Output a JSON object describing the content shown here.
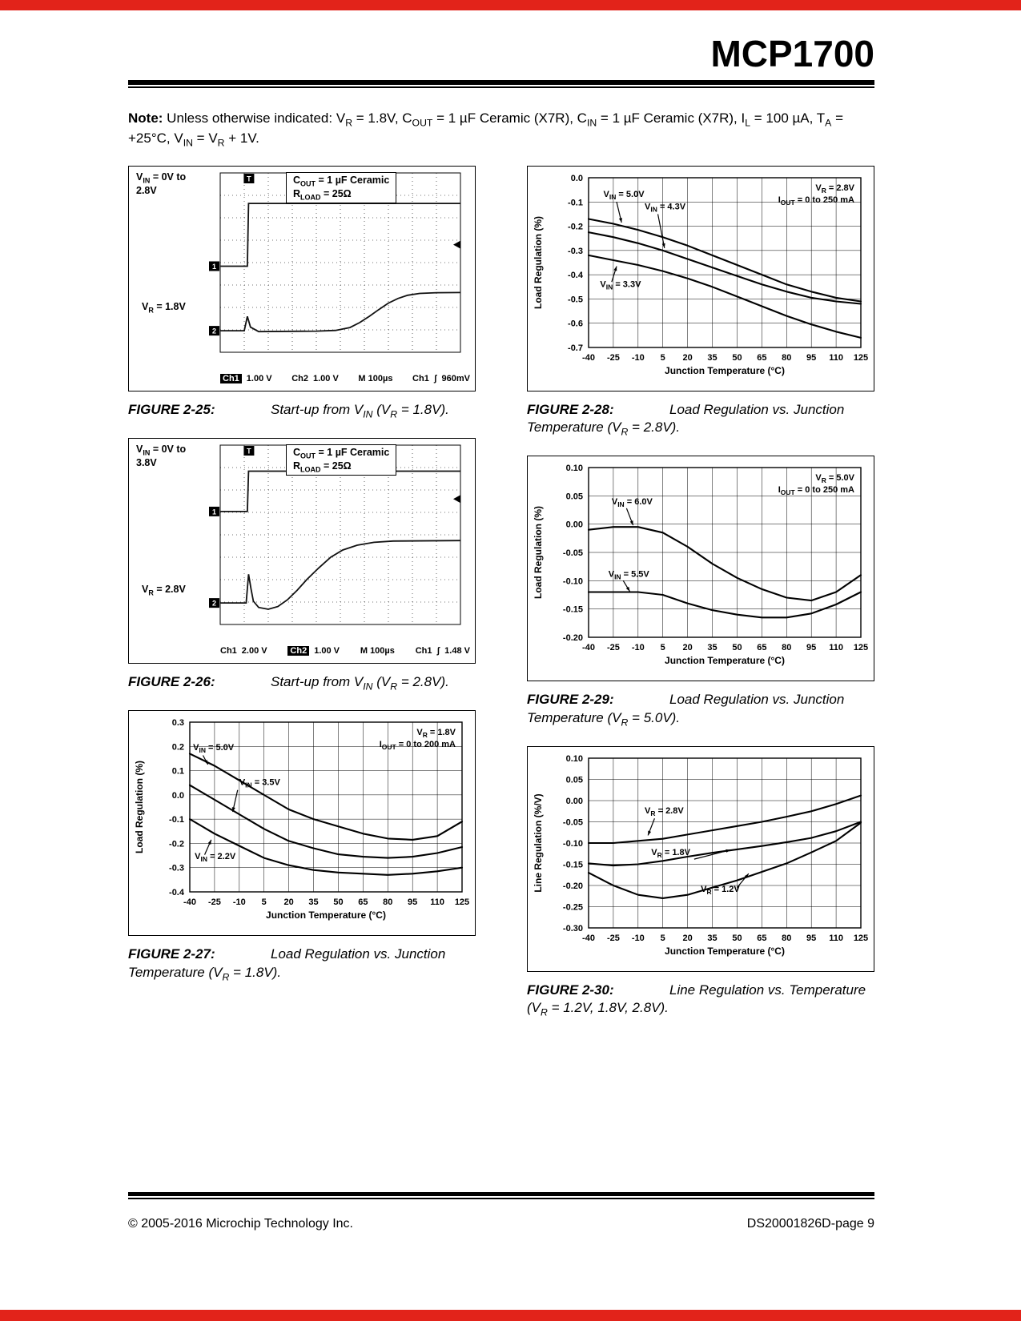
{
  "page": {
    "title": "MCP1700",
    "note_label": "Note:",
    "note_body": " Unless otherwise indicated: V_R_ = 1.8V, C_OUT_ = 1 µF Ceramic (X7R), C_IN_ = 1 µF Ceramic (X7R), I_L_ = 100 µA, T_A_ = +25°C, V_IN_ = V_R_ + 1V.",
    "footer_left": "© 2005-2016 Microchip Technology Inc.",
    "footer_right": "DS20001826D-page 9",
    "accent_color": "#e2231a"
  },
  "chart_data": [
    {
      "type": "scope",
      "caption_label": "FIGURE 2-25:",
      "caption_text": "Start-up from V_IN_ (V_R_ = 1.8V).",
      "vin_label_1": "V_IN_ = 0V to",
      "vin_label_2": "2.8V",
      "inset_label_1": "C_OUT_ = 1 µF Ceramic",
      "inset_label_2": "R_LOAD_ = 25Ω",
      "vr_label": "V_R_ = 1.8V",
      "vr_top": 0.6,
      "readout": [
        [
          {
            "t": "Ch1",
            "inv": true
          },
          {
            "t": "1.00 V"
          }
        ],
        [
          {
            "t": "Ch2"
          },
          {
            "t": "1.00 V"
          }
        ],
        [
          {
            "t": "M 100µs"
          }
        ],
        [
          {
            "t": "Ch1"
          },
          {
            "t": "ʃ"
          },
          {
            "t": "960mV"
          }
        ]
      ],
      "ch1_level": 0.52,
      "ch2_level": 0.88,
      "trig_x": 0.118,
      "trig_level": 0.4,
      "trace_ch1": [
        [
          0,
          0.52
        ],
        [
          0.113,
          0.52
        ],
        [
          0.118,
          0.17
        ],
        [
          1,
          0.17
        ]
      ],
      "trace_ch2": [
        [
          0,
          0.88
        ],
        [
          0.1,
          0.88
        ],
        [
          0.113,
          0.8
        ],
        [
          0.126,
          0.86
        ],
        [
          0.16,
          0.885
        ],
        [
          0.4,
          0.882
        ],
        [
          0.48,
          0.878
        ],
        [
          0.54,
          0.862
        ],
        [
          0.58,
          0.835
        ],
        [
          0.62,
          0.8
        ],
        [
          0.66,
          0.762
        ],
        [
          0.7,
          0.726
        ],
        [
          0.74,
          0.7
        ],
        [
          0.78,
          0.682
        ],
        [
          0.83,
          0.672
        ],
        [
          0.9,
          0.668
        ],
        [
          1,
          0.667
        ]
      ]
    },
    {
      "type": "scope",
      "caption_label": "FIGURE 2-26:",
      "caption_text": "Start-up from V_IN_ (V_R_ = 2.8V).",
      "vin_label_1": "V_IN_ = 0V to",
      "vin_label_2": "3.8V",
      "inset_label_1": "C_OUT_ = 1 µF Ceramic",
      "inset_label_2": "R_LOAD_ = 25Ω",
      "vr_label": "V_R_ = 2.8V",
      "vr_top": 0.645,
      "readout": [
        [
          {
            "t": "Ch1"
          },
          {
            "t": "2.00 V"
          }
        ],
        [
          {
            "t": "Ch2",
            "inv": true
          },
          {
            "t": "1.00 V"
          }
        ],
        [
          {
            "t": "M 100µs"
          }
        ],
        [
          {
            "t": "Ch1"
          },
          {
            "t": "ʃ"
          },
          {
            "t": "1.48 V"
          }
        ]
      ],
      "ch1_level": 0.37,
      "ch2_level": 0.88,
      "trig_x": 0.118,
      "trig_level": 0.3,
      "trace_ch1": [
        [
          0,
          0.37
        ],
        [
          0.113,
          0.37
        ],
        [
          0.118,
          0.145
        ],
        [
          1,
          0.145
        ]
      ],
      "trace_ch2": [
        [
          0,
          0.88
        ],
        [
          0.108,
          0.88
        ],
        [
          0.118,
          0.72
        ],
        [
          0.128,
          0.8
        ],
        [
          0.138,
          0.87
        ],
        [
          0.16,
          0.905
        ],
        [
          0.2,
          0.915
        ],
        [
          0.24,
          0.9
        ],
        [
          0.28,
          0.862
        ],
        [
          0.32,
          0.81
        ],
        [
          0.36,
          0.75
        ],
        [
          0.41,
          0.685
        ],
        [
          0.46,
          0.625
        ],
        [
          0.51,
          0.585
        ],
        [
          0.57,
          0.558
        ],
        [
          0.64,
          0.542
        ],
        [
          0.72,
          0.535
        ],
        [
          1,
          0.532
        ]
      ]
    },
    {
      "type": "line",
      "caption_label": "FIGURE 2-27:",
      "caption_text": "Load Regulation vs. Junction Temperature (V_R_ = 1.8V).",
      "xlabel": "Junction Temperature (°C)",
      "ylabel": "Load Regulation (%)",
      "xticks": [
        -40,
        -25,
        -10,
        5,
        20,
        35,
        50,
        65,
        80,
        95,
        110,
        125
      ],
      "ylim": [
        -0.4,
        0.3
      ],
      "ystep": 0.1,
      "ydecimals": 1,
      "infobox": [
        "V_R_ = 1.8V",
        "I_OUT_ = 0 to 200 mA"
      ],
      "series": [
        {
          "name": "V_IN_ = 5.0V",
          "values": [
            0.17,
            0.12,
            0.06,
            0,
            -0.06,
            -0.1,
            -0.13,
            -0.16,
            -0.18,
            -0.185,
            -0.17,
            -0.11
          ]
        },
        {
          "name": "V_IN_ = 3.5V",
          "values": [
            0.04,
            -0.02,
            -0.08,
            -0.14,
            -0.19,
            -0.22,
            -0.245,
            -0.255,
            -0.26,
            -0.255,
            -0.24,
            -0.215
          ]
        },
        {
          "name": "V_IN_ = 2.2V",
          "values": [
            -0.1,
            -0.16,
            -0.21,
            -0.26,
            -0.29,
            -0.31,
            -0.32,
            -0.325,
            -0.33,
            -0.325,
            -0.315,
            -0.3
          ]
        }
      ],
      "annotations": [
        {
          "text": "V_IN_ = 5.0V",
          "tx": -38,
          "ty": 0.185,
          "lx": -32,
          "ly": 0.163,
          "ax": -29,
          "ay": 0.125
        },
        {
          "text": "V_IN_ = 3.5V",
          "tx": -10,
          "ty": 0.04,
          "lx": -11,
          "ly": 0.02,
          "ax": -14,
          "ay": -0.07
        },
        {
          "text": "V_IN_ = 2.2V",
          "tx": -37,
          "ty": -0.265,
          "lx": -31,
          "ly": -0.247,
          "ax": -27,
          "ay": -0.185
        }
      ]
    },
    {
      "type": "line",
      "caption_label": "FIGURE 2-28:",
      "caption_text": "Load Regulation vs. Junction Temperature (V_R_ = 2.8V).",
      "xlabel": "Junction Temperature (°C)",
      "ylabel": "Load Regulation (%)",
      "xticks": [
        -40,
        -25,
        -10,
        5,
        20,
        35,
        50,
        65,
        80,
        95,
        110,
        125
      ],
      "ylim": [
        -0.7,
        0
      ],
      "ystep": 0.1,
      "ydecimals": 1,
      "infobox": [
        "V_R_ = 2.8V",
        "I_OUT_ = 0 to 250 mA"
      ],
      "series": [
        {
          "name": "V_IN_ = 5.0V",
          "values": [
            -0.17,
            -0.19,
            -0.215,
            -0.245,
            -0.28,
            -0.32,
            -0.36,
            -0.4,
            -0.44,
            -0.47,
            -0.495,
            -0.51
          ]
        },
        {
          "name": "V_IN_ = 4.3V",
          "values": [
            -0.225,
            -0.245,
            -0.27,
            -0.3,
            -0.335,
            -0.37,
            -0.405,
            -0.44,
            -0.47,
            -0.495,
            -0.51,
            -0.52
          ]
        },
        {
          "name": "V_IN_ = 3.3V",
          "values": [
            -0.32,
            -0.34,
            -0.36,
            -0.385,
            -0.415,
            -0.45,
            -0.49,
            -0.53,
            -0.57,
            -0.605,
            -0.635,
            -0.66
          ]
        }
      ],
      "annotations": [
        {
          "text": "V_IN_ = 5.0V",
          "tx": -31,
          "ty": -0.08,
          "lx": -23,
          "ly": -0.1,
          "ax": -20,
          "ay": -0.185
        },
        {
          "text": "V_IN_ = 4.3V",
          "tx": -6,
          "ty": -0.13,
          "lx": 2,
          "ly": -0.15,
          "ax": 6,
          "ay": -0.29
        },
        {
          "text": "V_IN_ = 3.3V",
          "tx": -33,
          "ty": -0.45,
          "lx": -26,
          "ly": -0.43,
          "ax": -23,
          "ay": -0.365
        }
      ]
    },
    {
      "type": "line",
      "caption_label": "FIGURE 2-29:",
      "caption_text": "Load Regulation vs. Junction Temperature (V_R_ = 5.0V).",
      "xlabel": "Junction Temperature (°C)",
      "ylabel": "Load Regulation (%)",
      "xticks": [
        -40,
        -25,
        -10,
        5,
        20,
        35,
        50,
        65,
        80,
        95,
        110,
        125
      ],
      "ylim": [
        -0.2,
        0.1
      ],
      "ystep": 0.05,
      "ydecimals": 2,
      "infobox": [
        "V_R_ = 5.0V",
        "I_OUT_ = 0 to 250 mA"
      ],
      "series": [
        {
          "name": "V_IN_ = 6.0V",
          "values": [
            -0.01,
            -0.005,
            -0.005,
            -0.015,
            -0.04,
            -0.07,
            -0.095,
            -0.115,
            -0.13,
            -0.135,
            -0.12,
            -0.09
          ]
        },
        {
          "name": "V_IN_ = 5.5V",
          "values": [
            -0.12,
            -0.12,
            -0.12,
            -0.125,
            -0.14,
            -0.152,
            -0.16,
            -0.165,
            -0.165,
            -0.158,
            -0.142,
            -0.12
          ]
        }
      ],
      "annotations": [
        {
          "text": "V_IN_ = 6.0V",
          "tx": -26,
          "ty": 0.035,
          "lx": -17,
          "ly": 0.028,
          "ax": -13,
          "ay": -0.002
        },
        {
          "text": "V_IN_ = 5.5V",
          "tx": -28,
          "ty": -0.093,
          "lx": -19,
          "ly": -0.1,
          "ax": -15,
          "ay": -0.119
        }
      ]
    },
    {
      "type": "line",
      "caption_label": "FIGURE 2-30:",
      "caption_text": "Line Regulation vs. Temperature (V_R_ = 1.2V, 1.8V, 2.8V).",
      "xlabel": "Junction Temperature (°C)",
      "ylabel": "Line Regulation (%/V)",
      "xticks": [
        -40,
        -25,
        -10,
        5,
        20,
        35,
        50,
        65,
        80,
        95,
        110,
        125
      ],
      "ylim": [
        -0.3,
        0.1
      ],
      "ystep": 0.05,
      "ydecimals": 2,
      "infobox": [],
      "series": [
        {
          "name": "V_R_ = 2.8V",
          "values": [
            -0.1,
            -0.1,
            -0.095,
            -0.09,
            -0.08,
            -0.07,
            -0.06,
            -0.05,
            -0.038,
            -0.025,
            -0.008,
            0.012
          ]
        },
        {
          "name": "V_R_ = 1.8V",
          "values": [
            -0.148,
            -0.153,
            -0.15,
            -0.142,
            -0.132,
            -0.123,
            -0.115,
            -0.107,
            -0.098,
            -0.088,
            -0.072,
            -0.05
          ]
        },
        {
          "name": "V_R_ = 1.2V",
          "values": [
            -0.17,
            -0.2,
            -0.222,
            -0.23,
            -0.222,
            -0.205,
            -0.188,
            -0.168,
            -0.148,
            -0.122,
            -0.095,
            -0.052
          ]
        }
      ],
      "annotations": [
        {
          "text": "V_R_ = 2.8V",
          "tx": -6,
          "ty": -0.03,
          "lx": 0,
          "ly": -0.042,
          "ax": -4,
          "ay": -0.082
        },
        {
          "text": "V_R_ = 1.8V",
          "tx": -2,
          "ty": -0.128,
          "lx": 24,
          "ly": -0.138,
          "ax": 46,
          "ay": -0.116
        },
        {
          "text": "V_R_ = 1.2V",
          "tx": 28,
          "ty": -0.215,
          "lx": 50,
          "ly": -0.205,
          "ax": 57,
          "ay": -0.172
        }
      ]
    }
  ]
}
